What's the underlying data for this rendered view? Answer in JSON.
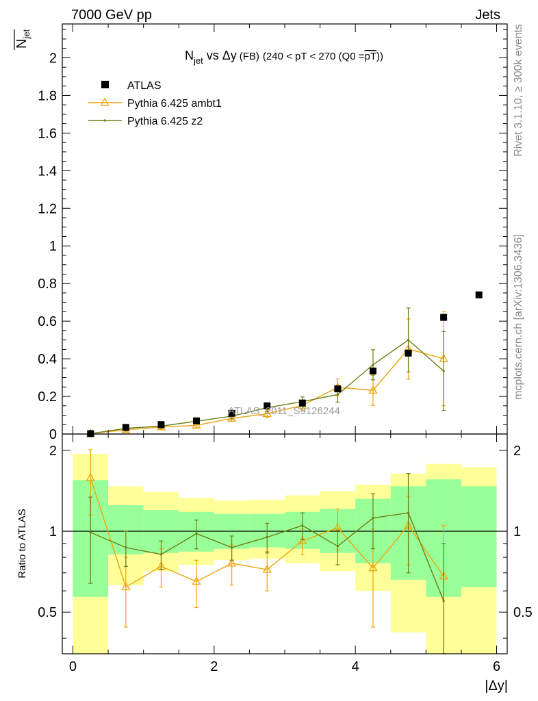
{
  "header": {
    "left": "7000 GeV pp",
    "right": "Jets"
  },
  "main_plot": {
    "title_pre": "N",
    "title_sub": "jet",
    "title_mid": " vs ",
    "title_delta": "Δy",
    "title_fb": "(FB)",
    "title_rest": "(240 < pT < 270 (Q0 =",
    "title_over": "pT",
    "title_end": "))",
    "ylabel": "N",
    "ylabel_sub": "jet",
    "watermark": "ATLAS_2011_S9126244"
  },
  "ratio_plot": {
    "ylabel": "Ratio to ATLAS"
  },
  "xlabel": "|Δy|",
  "side_text": {
    "rivet": "Rivet 3.1.10, ≥ 300k events",
    "mcplots": "mcplots.cern.ch [arXiv:1306.3436]"
  },
  "colors": {
    "data": "#000000",
    "ambt1": "#f0a30a",
    "z2": "#6b7f14",
    "band_inner": "#99ff99",
    "band_outer": "#ffff99"
  },
  "chart_data": {
    "type": "scatter",
    "x_ticks": [
      "0",
      "2",
      "4",
      "6"
    ],
    "x_range": [
      -0.15,
      6.15
    ],
    "main_ylim": [
      0,
      2.18
    ],
    "main_y_ticks": [
      "0",
      "0.2",
      "0.4",
      "0.6",
      "0.8",
      "1",
      "1.2",
      "1.4",
      "1.6",
      "1.8",
      "2"
    ],
    "ratio_ylim": [
      0.35,
      2.3
    ],
    "ratio_y_ticks": [
      "0.5",
      "1",
      "2"
    ],
    "legend": [
      {
        "label": "ATLAS",
        "key": "data"
      },
      {
        "label": "Pythia 6.425 ambt1",
        "key": "ambt1"
      },
      {
        "label": "Pythia 6.425 z2",
        "key": "z2"
      }
    ],
    "series": [
      {
        "name": "ATLAS",
        "key": "data",
        "x": [
          0.25,
          0.75,
          1.25,
          1.75,
          2.25,
          2.75,
          3.25,
          3.75,
          4.25,
          4.75,
          5.25,
          5.75
        ],
        "y": [
          0.002,
          0.035,
          0.05,
          0.07,
          0.11,
          0.15,
          0.165,
          0.24,
          0.335,
          0.43,
          0.62,
          0.74
        ]
      },
      {
        "name": "Pythia 6.425 ambt1",
        "key": "ambt1",
        "x": [
          0.25,
          0.75,
          1.25,
          1.75,
          2.25,
          2.75,
          3.25,
          3.75,
          4.25,
          4.75,
          5.25
        ],
        "y": [
          0.003,
          0.022,
          0.037,
          0.046,
          0.083,
          0.108,
          0.152,
          0.248,
          0.232,
          0.452,
          0.4
        ],
        "err": [
          0.003,
          0.008,
          0.01,
          0.012,
          0.015,
          0.02,
          0.025,
          0.045,
          0.08,
          0.16,
          0.25
        ]
      },
      {
        "name": "Pythia 6.425 z2",
        "key": "z2",
        "x": [
          0.25,
          0.75,
          1.25,
          1.75,
          2.25,
          2.75,
          3.25,
          3.75,
          4.25,
          4.75,
          5.25
        ],
        "y": [
          0.002,
          0.03,
          0.042,
          0.068,
          0.095,
          0.14,
          0.172,
          0.21,
          0.368,
          0.5,
          0.335
        ],
        "err": [
          0.002,
          0.008,
          0.01,
          0.012,
          0.015,
          0.02,
          0.025,
          0.04,
          0.08,
          0.17,
          0.21
        ]
      }
    ],
    "ratio": {
      "ambt1": {
        "y": [
          1.58,
          0.62,
          0.74,
          0.65,
          0.76,
          0.72,
          0.92,
          1.03,
          0.73,
          1.05,
          0.68
        ],
        "err": [
          0.43,
          0.18,
          0.12,
          0.13,
          0.13,
          0.12,
          0.1,
          0.18,
          0.29,
          0.3,
          0.37
        ]
      },
      "z2": {
        "y": [
          0.99,
          0.87,
          0.82,
          0.98,
          0.87,
          0.95,
          1.05,
          0.88,
          1.12,
          1.17,
          0.55
        ],
        "err": [
          0.35,
          0.13,
          0.1,
          0.12,
          0.09,
          0.12,
          0.12,
          0.13,
          0.26,
          0.47,
          0.35
        ]
      },
      "bands": [
        {
          "x0": 0.0,
          "x1": 0.5,
          "inner": [
            0.57,
            1.55
          ],
          "outer": [
            0.0,
            1.94
          ]
        },
        {
          "x0": 0.5,
          "x1": 1.0,
          "inner": [
            0.82,
            1.25
          ],
          "outer": [
            0.63,
            1.47
          ]
        },
        {
          "x0": 1.0,
          "x1": 1.5,
          "inner": [
            0.83,
            1.2
          ],
          "outer": [
            0.71,
            1.4
          ]
        },
        {
          "x0": 1.5,
          "x1": 2.0,
          "inner": [
            0.84,
            1.18
          ],
          "outer": [
            0.75,
            1.33
          ]
        },
        {
          "x0": 2.0,
          "x1": 2.5,
          "inner": [
            0.86,
            1.16
          ],
          "outer": [
            0.78,
            1.3
          ]
        },
        {
          "x0": 2.5,
          "x1": 3.0,
          "inner": [
            0.87,
            1.16
          ],
          "outer": [
            0.79,
            1.31
          ]
        },
        {
          "x0": 3.0,
          "x1": 3.5,
          "inner": [
            0.86,
            1.18
          ],
          "outer": [
            0.76,
            1.36
          ]
        },
        {
          "x0": 3.5,
          "x1": 4.0,
          "inner": [
            0.83,
            1.21
          ],
          "outer": [
            0.71,
            1.41
          ]
        },
        {
          "x0": 4.0,
          "x1": 4.5,
          "inner": [
            0.76,
            1.32
          ],
          "outer": [
            0.6,
            1.49
          ]
        },
        {
          "x0": 4.5,
          "x1": 5.0,
          "inner": [
            0.66,
            1.47
          ],
          "outer": [
            0.42,
            1.64
          ]
        },
        {
          "x0": 5.0,
          "x1": 5.5,
          "inner": [
            0.57,
            1.56
          ],
          "outer": [
            0.0,
            1.78
          ]
        },
        {
          "x0": 5.5,
          "x1": 6.0,
          "inner": [
            0.62,
            1.47
          ],
          "outer": [
            0.0,
            1.73
          ]
        }
      ]
    }
  }
}
